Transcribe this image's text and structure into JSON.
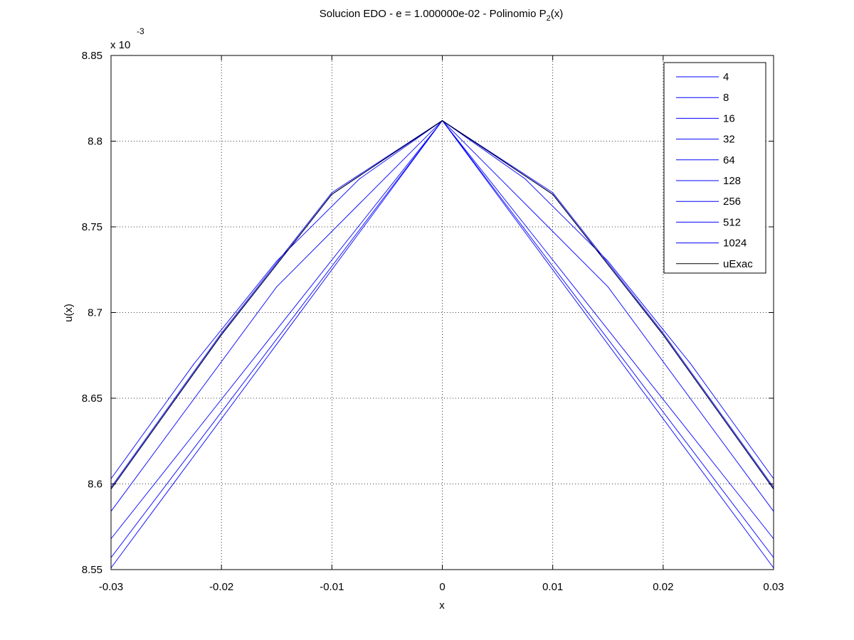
{
  "chart_data": {
    "type": "line",
    "title_main": "Solucion EDO - e = 1.000000e-02 - Polinomio P",
    "title_sub": "2",
    "title_tail": "(x)",
    "xlabel": "x",
    "ylabel": "u(x)",
    "y_exponent_base": "x 10",
    "y_exponent_power": "-3",
    "xlim": [
      -0.03,
      0.03
    ],
    "ylim": [
      8.55,
      8.85
    ],
    "y_unit_scale": 0.001,
    "xticks": [
      -0.03,
      -0.02,
      -0.01,
      0,
      0.01,
      0.02,
      0.03
    ],
    "xtick_labels": [
      "-0.03",
      "-0.02",
      "-0.01",
      "0",
      "0.01",
      "0.02",
      "0.03"
    ],
    "yticks": [
      8.55,
      8.6,
      8.65,
      8.7,
      8.75,
      8.8,
      8.85
    ],
    "ytick_labels": [
      "8.55",
      "8.6",
      "8.65",
      "8.7",
      "8.75",
      "8.8",
      "8.85"
    ],
    "grid": true,
    "legend_position": "top-right",
    "series": [
      {
        "name": "4",
        "color": "#0000ff",
        "x": [
          -0.03,
          0,
          0.03
        ],
        "y": [
          8.551,
          8.812,
          8.551
        ]
      },
      {
        "name": "8",
        "color": "#0000ff",
        "x": [
          -0.03,
          0,
          0.03
        ],
        "y": [
          8.557,
          8.812,
          8.557
        ]
      },
      {
        "name": "16",
        "color": "#0000ff",
        "x": [
          -0.03,
          0,
          0.03
        ],
        "y": [
          8.568,
          8.812,
          8.568
        ]
      },
      {
        "name": "32",
        "color": "#0000ff",
        "x": [
          -0.03,
          -0.015,
          0,
          0.015,
          0.03
        ],
        "y": [
          8.584,
          8.715,
          8.812,
          8.715,
          8.584
        ]
      },
      {
        "name": "64",
        "color": "#0000ff",
        "x": [
          -0.03,
          -0.0225,
          -0.015,
          -0.0075,
          0,
          0.0075,
          0.015,
          0.0225,
          0.03
        ],
        "y": [
          8.603,
          8.67,
          8.73,
          8.778,
          8.812,
          8.778,
          8.73,
          8.67,
          8.603
        ]
      },
      {
        "name": "128",
        "color": "#0000ff",
        "x": [
          -0.03,
          -0.02,
          -0.01,
          0,
          0.01,
          0.02,
          0.03
        ],
        "y": [
          8.598,
          8.688,
          8.77,
          8.812,
          8.77,
          8.688,
          8.598
        ]
      },
      {
        "name": "256",
        "color": "#0000ff",
        "x": [
          -0.03,
          -0.02,
          -0.01,
          0,
          0.01,
          0.02,
          0.03
        ],
        "y": [
          8.597,
          8.687,
          8.769,
          8.812,
          8.769,
          8.687,
          8.597
        ]
      },
      {
        "name": "512",
        "color": "#0000ff",
        "x": [
          -0.03,
          -0.02,
          -0.01,
          0,
          0.01,
          0.02,
          0.03
        ],
        "y": [
          8.597,
          8.687,
          8.769,
          8.812,
          8.769,
          8.687,
          8.597
        ]
      },
      {
        "name": "1024",
        "color": "#0000ff",
        "x": [
          -0.03,
          -0.02,
          -0.01,
          0,
          0.01,
          0.02,
          0.03
        ],
        "y": [
          8.597,
          8.687,
          8.769,
          8.812,
          8.769,
          8.687,
          8.597
        ]
      },
      {
        "name": "uExac",
        "color": "#000000",
        "x": [
          -0.03,
          -0.02,
          -0.01,
          0,
          0.01,
          0.02,
          0.03
        ],
        "y": [
          8.597,
          8.687,
          8.769,
          8.812,
          8.769,
          8.687,
          8.597
        ]
      }
    ]
  }
}
